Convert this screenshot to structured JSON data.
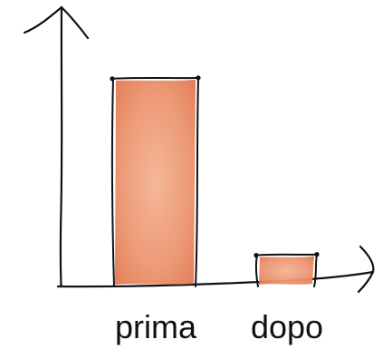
{
  "chart_data": {
    "type": "bar",
    "categories": [
      "prima",
      "dopo"
    ],
    "values": [
      100,
      15
    ],
    "title": "",
    "xlabel": "",
    "ylabel": "",
    "ylim": [
      0,
      120
    ],
    "grid": false,
    "style": "hand-drawn sketch",
    "colors": {
      "bar_fill": "#E98A63",
      "bar_fill_light": "#F6C2A8",
      "outline": "#111111"
    }
  }
}
